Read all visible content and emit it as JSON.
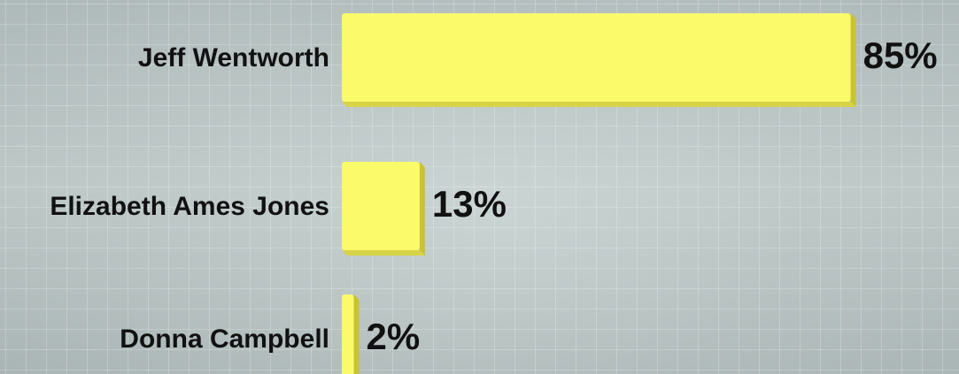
{
  "chart_data": {
    "type": "bar",
    "orientation": "horizontal",
    "categories": [
      "Jeff Wentworth",
      "Elizabeth Ames Jones",
      "Donna Campbell"
    ],
    "values": [
      85,
      13,
      2
    ],
    "value_labels": [
      "85%",
      "13%",
      "2%"
    ],
    "unit": "%",
    "xlim": [
      0,
      100
    ],
    "grid": true,
    "colors": {
      "bar": "#fafa6a",
      "bar_side": "#c8c334",
      "bar_bottom": "#d8d348",
      "text": "#111111"
    }
  }
}
